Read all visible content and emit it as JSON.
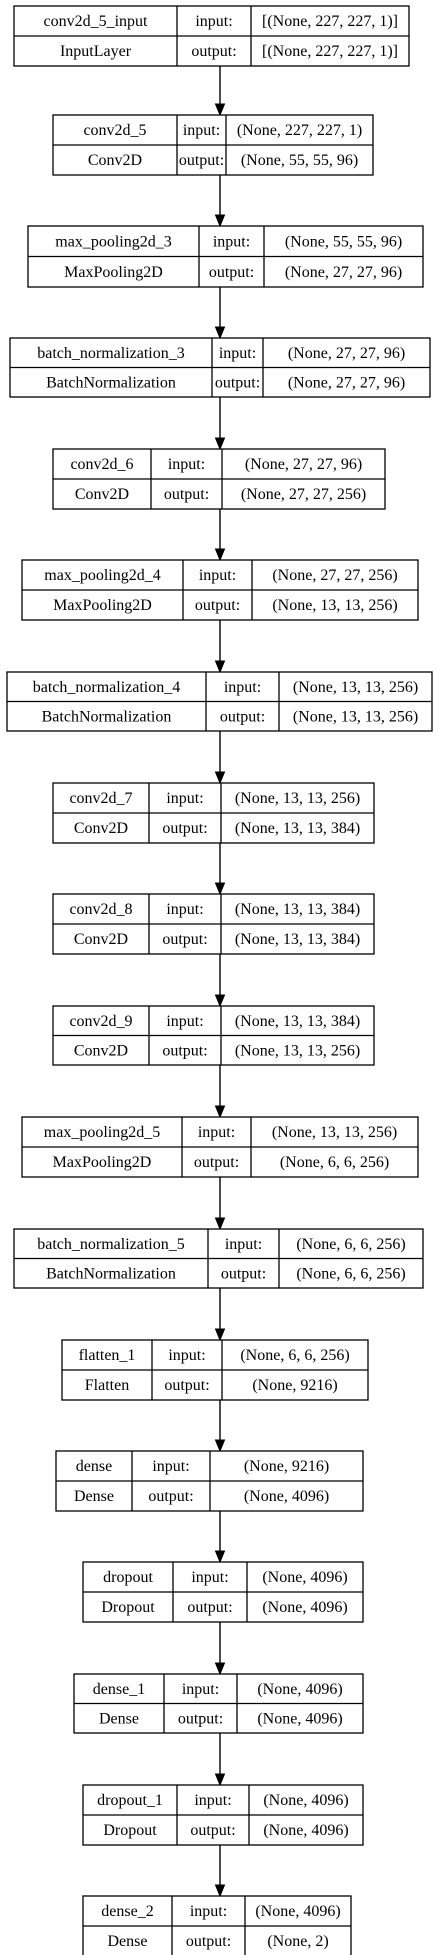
{
  "diagram": {
    "labels": {
      "input": "input:",
      "output": "output:"
    },
    "layers": [
      {
        "name": "conv2d_5_input",
        "type": "InputLayer",
        "input": "[(None, 227, 227, 1)]",
        "output": "[(None, 227, 227, 1)]"
      },
      {
        "name": "conv2d_5",
        "type": "Conv2D",
        "input": "(None, 227, 227, 1)",
        "output": "(None, 55, 55, 96)"
      },
      {
        "name": "max_pooling2d_3",
        "type": "MaxPooling2D",
        "input": "(None, 55, 55, 96)",
        "output": "(None, 27, 27, 96)"
      },
      {
        "name": "batch_normalization_3",
        "type": "BatchNormalization",
        "input": "(None, 27, 27, 96)",
        "output": "(None, 27, 27, 96)"
      },
      {
        "name": "conv2d_6",
        "type": "Conv2D",
        "input": "(None, 27, 27, 96)",
        "output": "(None, 27, 27, 256)"
      },
      {
        "name": "max_pooling2d_4",
        "type": "MaxPooling2D",
        "input": "(None, 27, 27, 256)",
        "output": "(None, 13, 13, 256)"
      },
      {
        "name": "batch_normalization_4",
        "type": "BatchNormalization",
        "input": "(None, 13, 13, 256)",
        "output": "(None, 13, 13, 256)"
      },
      {
        "name": "conv2d_7",
        "type": "Conv2D",
        "input": "(None, 13, 13, 256)",
        "output": "(None, 13, 13, 384)"
      },
      {
        "name": "conv2d_8",
        "type": "Conv2D",
        "input": "(None, 13, 13, 384)",
        "output": "(None, 13, 13, 384)"
      },
      {
        "name": "conv2d_9",
        "type": "Conv2D",
        "input": "(None, 13, 13, 384)",
        "output": "(None, 13, 13, 256)"
      },
      {
        "name": "max_pooling2d_5",
        "type": "MaxPooling2D",
        "input": "(None, 13, 13, 256)",
        "output": "(None, 6, 6, 256)"
      },
      {
        "name": "batch_normalization_5",
        "type": "BatchNormalization",
        "input": "(None, 6, 6, 256)",
        "output": "(None, 6, 6, 256)"
      },
      {
        "name": "flatten_1",
        "type": "Flatten",
        "input": "(None, 6, 6, 256)",
        "output": "(None, 9216)"
      },
      {
        "name": "dense",
        "type": "Dense",
        "input": "(None, 9216)",
        "output": "(None, 4096)"
      },
      {
        "name": "dropout",
        "type": "Dropout",
        "input": "(None, 4096)",
        "output": "(None, 4096)"
      },
      {
        "name": "dense_1",
        "type": "Dense",
        "input": "(None, 4096)",
        "output": "(None, 4096)"
      },
      {
        "name": "dropout_1",
        "type": "Dropout",
        "input": "(None, 4096)",
        "output": "(None, 4096)"
      },
      {
        "name": "dense_2",
        "type": "Dense",
        "input": "(None, 4096)",
        "output": "(None, 2)"
      }
    ]
  }
}
